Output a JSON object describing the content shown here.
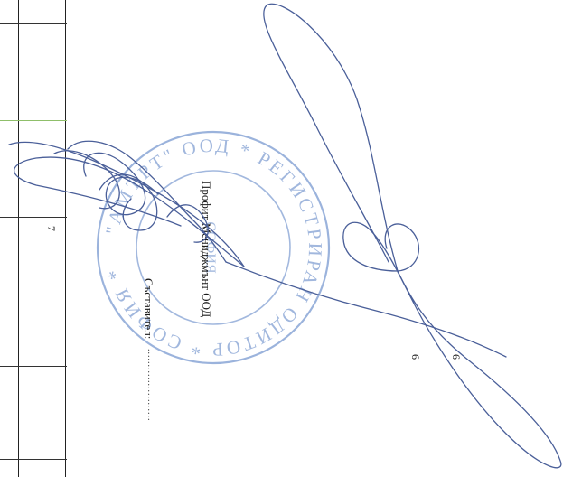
{
  "table": {
    "row_number": "7"
  },
  "compiler": {
    "label": "Съставител:",
    "dots": ".......................",
    "name": "Профит Мениджмънт ООД"
  },
  "page_numbers": {
    "left": "6",
    "right": "6"
  },
  "stamp": {
    "text": "\"АМЪРТ\" ООД * РЕГИСТРИРАН ОДИТОР ...",
    "center_text": "СОФИЯ",
    "color": "#7a9ad0"
  },
  "signature": {
    "color": "#4a5f99"
  }
}
